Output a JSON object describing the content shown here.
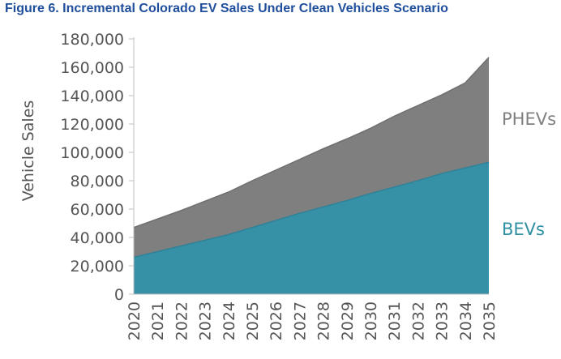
{
  "figure_title": "Figure 6. Incremental Colorado EV Sales Under Clean Vehicles Scenario",
  "colors": {
    "bev": "#3691a6",
    "phev": "#7f7f7f",
    "phev_label": "#808080",
    "bev_label": "#2f8fa3",
    "title": "#1f4e9c"
  },
  "chart_data": {
    "type": "area",
    "stacked": true,
    "title": "Figure 6. Incremental Colorado EV Sales Under Clean Vehicles Scenario",
    "xlabel": "",
    "ylabel": "Vehicle Sales",
    "x": [
      2020,
      2021,
      2022,
      2023,
      2024,
      2025,
      2026,
      2027,
      2028,
      2029,
      2030,
      2031,
      2032,
      2033,
      2034,
      2035
    ],
    "ylim": [
      0,
      180000
    ],
    "yticks": [
      0,
      20000,
      40000,
      60000,
      80000,
      100000,
      120000,
      140000,
      160000,
      180000
    ],
    "ytick_labels": [
      "0",
      "20,000",
      "40,000",
      "60,000",
      "80,000",
      "100,000",
      "120,000",
      "140,000",
      "160,000",
      "180,000"
    ],
    "series": [
      {
        "name": "BEVs",
        "values": [
          26000,
          30000,
          34000,
          38000,
          42000,
          47000,
          52000,
          57000,
          61500,
          66000,
          71000,
          75500,
          80000,
          85000,
          89000,
          93000
        ]
      },
      {
        "name": "PHEVs",
        "values": [
          21000,
          23000,
          25000,
          27500,
          30000,
          33000,
          35500,
          38000,
          41000,
          43500,
          46000,
          50000,
          53000,
          55500,
          60000,
          74000
        ]
      }
    ],
    "grid": false,
    "legend": "direct labels at right"
  }
}
